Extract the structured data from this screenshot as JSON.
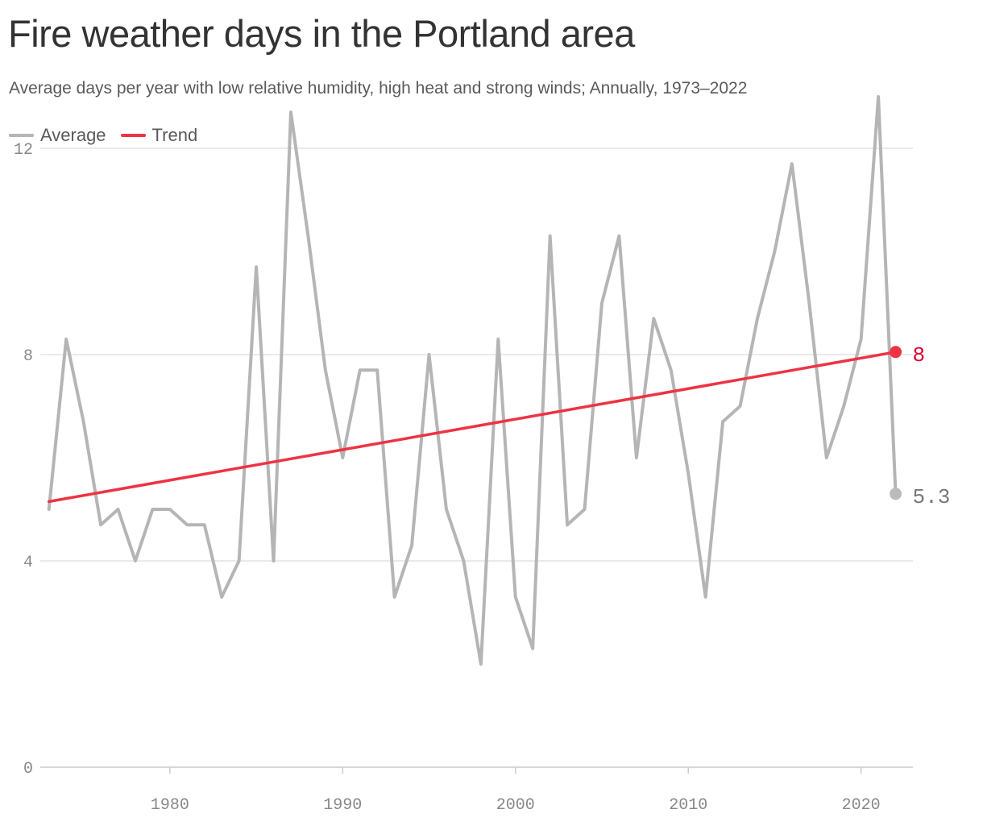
{
  "title": "Fire weather days in the Portland area",
  "subtitle": "Average days per year with low relative humidity, high heat and strong winds; Annually, 1973–2022",
  "legend": [
    {
      "label": "Average",
      "color": "#b5b5b5"
    },
    {
      "label": "Trend",
      "color": "#ee3344"
    }
  ],
  "chart_data": {
    "type": "line",
    "x": [
      1973,
      1974,
      1975,
      1976,
      1977,
      1978,
      1979,
      1980,
      1981,
      1982,
      1983,
      1984,
      1985,
      1986,
      1987,
      1988,
      1989,
      1990,
      1991,
      1992,
      1993,
      1994,
      1995,
      1996,
      1997,
      1998,
      1999,
      2000,
      2001,
      2002,
      2003,
      2004,
      2005,
      2006,
      2007,
      2008,
      2009,
      2010,
      2011,
      2012,
      2013,
      2014,
      2015,
      2016,
      2017,
      2018,
      2019,
      2020,
      2021,
      2022
    ],
    "series": [
      {
        "name": "Average",
        "color": "#b5b5b5",
        "values": [
          5.0,
          8.3,
          6.7,
          4.7,
          5.0,
          4.0,
          5.0,
          5.0,
          4.7,
          4.7,
          3.3,
          4.0,
          9.7,
          4.0,
          12.7,
          10.3,
          7.7,
          6.0,
          7.7,
          7.7,
          3.3,
          4.3,
          8.0,
          5.0,
          4.0,
          2.0,
          8.3,
          3.3,
          2.3,
          10.3,
          4.7,
          5.0,
          9.0,
          10.3,
          6.0,
          8.7,
          7.7,
          5.7,
          3.3,
          6.7,
          7.0,
          8.7,
          10.0,
          11.7,
          9.0,
          6.0,
          7.0,
          8.3,
          13.0,
          5.3
        ],
        "end_label": "5.3"
      },
      {
        "name": "Trend",
        "color": "#ee3344",
        "x": [
          1973,
          2022
        ],
        "values": [
          5.15,
          8.05
        ],
        "end_label": "8"
      }
    ],
    "x_ticks": [
      1980,
      1990,
      2000,
      2010,
      2020
    ],
    "y_ticks": [
      0,
      4,
      8,
      12
    ],
    "xlim": [
      1972.5,
      2023.0
    ],
    "ylim": [
      0,
      13.0
    ],
    "grid": "horizontal",
    "legend_position": "top-left",
    "label_colors": {
      "Average": "#777777",
      "Trend": "#dd0033"
    }
  }
}
